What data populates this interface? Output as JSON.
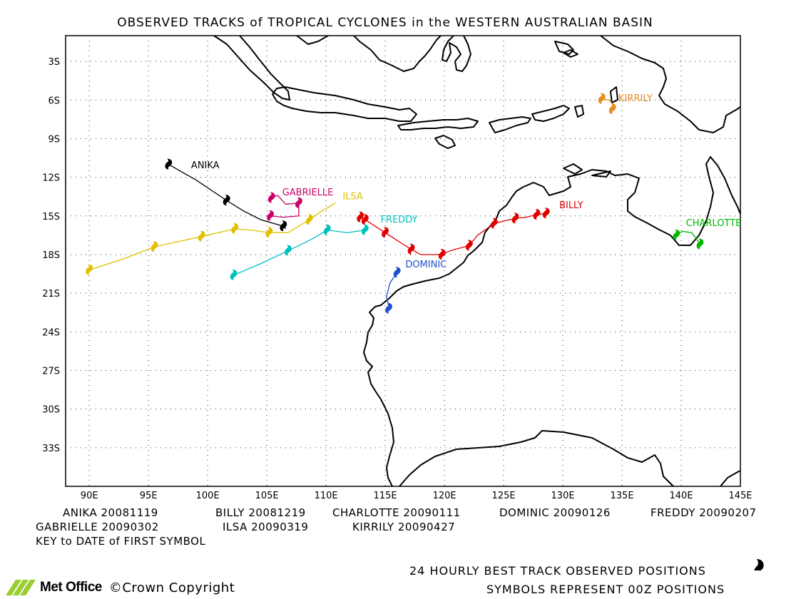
{
  "title": "OBSERVED TRACKS of TROPICAL CYCLONES in the WESTERN AUSTRALIAN BASIN",
  "axes": {
    "lon_labels": [
      "90E",
      "95E",
      "100E",
      "105E",
      "110E",
      "115E",
      "120E",
      "125E",
      "130E",
      "135E",
      "140E",
      "145E"
    ],
    "lat_labels": [
      "3S",
      "6S",
      "9S",
      "12S",
      "15S",
      "18S",
      "21S",
      "24S",
      "27S",
      "30S",
      "33S"
    ]
  },
  "storms": [
    {
      "name": "ANIKA",
      "color": "#000000",
      "label_pos": [
        98.6,
        -11.3
      ],
      "track": [
        [
          96.7,
          -11.0
        ],
        [
          99,
          -12.2
        ],
        [
          101.6,
          -13.8
        ],
        [
          103,
          -14.6
        ],
        [
          104.5,
          -15.3
        ],
        [
          106.4,
          -15.8
        ],
        [
          106.6,
          -16.0
        ]
      ],
      "points": [
        [
          96.7,
          -11.0
        ],
        [
          101.6,
          -13.8
        ],
        [
          106.4,
          -15.8
        ]
      ]
    },
    {
      "name": "BILLY",
      "color": "#e00000",
      "label_pos": [
        129.7,
        -14.4
      ],
      "track": [
        [
          128.6,
          -14.8
        ],
        [
          127.8,
          -14.9
        ],
        [
          126.9,
          -15.1
        ],
        [
          126.0,
          -15.2
        ],
        [
          125,
          -15.4
        ],
        [
          124.2,
          -15.6
        ],
        [
          122.8,
          -16.5
        ],
        [
          122.1,
          -17.3
        ],
        [
          120.5,
          -17.7
        ],
        [
          119.8,
          -18.0
        ],
        [
          118,
          -18.0
        ],
        [
          117.2,
          -17.6
        ],
        [
          116,
          -16.9
        ],
        [
          115,
          -16.3
        ],
        [
          113.3,
          -15.3
        ],
        [
          112.9,
          -15.1
        ]
      ],
      "points": [
        [
          128.6,
          -14.8
        ],
        [
          127.8,
          -14.9
        ],
        [
          126.0,
          -15.2
        ],
        [
          124.2,
          -15.6
        ],
        [
          122.1,
          -17.3
        ],
        [
          119.8,
          -18.0
        ],
        [
          117.2,
          -17.6
        ],
        [
          115.0,
          -16.3
        ],
        [
          113.3,
          -15.3
        ],
        [
          112.9,
          -15.1
        ]
      ]
    },
    {
      "name": "CHARLOTTE",
      "color": "#00b800",
      "label_pos": [
        140.4,
        -15.8
      ],
      "track": [
        [
          139.6,
          -16.5
        ],
        [
          140.1,
          -16.2
        ],
        [
          140.9,
          -16.3
        ],
        [
          141.3,
          -16.8
        ],
        [
          141.6,
          -17.2
        ]
      ],
      "points": [
        [
          139.6,
          -16.5
        ],
        [
          141.6,
          -17.2
        ]
      ]
    },
    {
      "name": "DOMINIC",
      "color": "#2050d0",
      "label_pos": [
        116.7,
        -19.0
      ],
      "track": [
        [
          116.0,
          -19.4
        ],
        [
          115.4,
          -20.2
        ],
        [
          115.1,
          -21.3
        ],
        [
          115.3,
          -22.0
        ],
        [
          115.3,
          -22.3
        ]
      ],
      "points": [
        [
          116.0,
          -19.4
        ],
        [
          115.3,
          -22.2
        ]
      ]
    },
    {
      "name": "FREDDY",
      "color": "#00c0c0",
      "label_pos": [
        114.6,
        -15.5
      ],
      "track": [
        [
          113.3,
          -16.1
        ],
        [
          111.8,
          -16.3
        ],
        [
          110.1,
          -16.1
        ],
        [
          108.6,
          -16.9
        ],
        [
          106.8,
          -17.7
        ],
        [
          104.5,
          -18.7
        ],
        [
          102.2,
          -19.6
        ]
      ],
      "points": [
        [
          113.3,
          -16.1
        ],
        [
          110.1,
          -16.1
        ],
        [
          106.8,
          -17.7
        ],
        [
          102.2,
          -19.6
        ]
      ]
    },
    {
      "name": "GABRIELLE",
      "color": "#cc0066",
      "label_pos": [
        106.3,
        -13.4
      ],
      "track": [
        [
          105.4,
          -13.6
        ],
        [
          105.9,
          -13.4
        ],
        [
          106.6,
          -14.1
        ],
        [
          107.7,
          -14.0
        ],
        [
          107.7,
          -15.0
        ],
        [
          106.4,
          -15.1
        ],
        [
          105.3,
          -15.0
        ]
      ],
      "points": [
        [
          105.4,
          -13.6
        ],
        [
          107.7,
          -14.0
        ],
        [
          105.3,
          -15.0
        ]
      ]
    },
    {
      "name": "ILSA",
      "color": "#e0c000",
      "label_pos": [
        111.4,
        -13.7
      ],
      "track": [
        [
          110.8,
          -14.0
        ],
        [
          109.5,
          -14.7
        ],
        [
          108.6,
          -15.3
        ],
        [
          107.5,
          -15.9
        ],
        [
          106.8,
          -16.3
        ],
        [
          105.2,
          -16.3
        ],
        [
          103.6,
          -16.1
        ],
        [
          102.3,
          -16.0
        ],
        [
          99.5,
          -16.6
        ],
        [
          97.5,
          -17.0
        ],
        [
          95.5,
          -17.4
        ],
        [
          93,
          -18.3
        ],
        [
          90.0,
          -19.2
        ]
      ],
      "points": [
        [
          108.6,
          -15.3
        ],
        [
          105.2,
          -16.3
        ],
        [
          102.3,
          -16.0
        ],
        [
          99.5,
          -16.6
        ],
        [
          95.5,
          -17.4
        ],
        [
          90.0,
          -19.2
        ]
      ]
    },
    {
      "name": "KIRRILY",
      "color": "#e88a20",
      "label_pos": [
        134.7,
        -6.1
      ],
      "track": [
        [
          133.3,
          -5.9
        ],
        [
          133.9,
          -6.0
        ],
        [
          134.2,
          -6.3
        ],
        [
          134.2,
          -6.7
        ]
      ],
      "points": [
        [
          133.3,
          -5.9
        ],
        [
          134.2,
          -6.7
        ]
      ]
    }
  ],
  "key": {
    "row1": [
      "ANIKA 20081119",
      "BILLY 20081219",
      "CHARLOTTE 20090111",
      "DOMINIC 20090126",
      "FREDDY 20090207"
    ],
    "row2": [
      "GABRIELLE 20090302",
      "ILSA 20090319",
      "KIRRILY 20090427"
    ],
    "note": "KEY to DATE of FIRST SYMBOL"
  },
  "footer": {
    "line1": "24 HOURLY BEST TRACK OBSERVED POSITIONS",
    "line2": "SYMBOLS REPRESENT 00Z POSITIONS",
    "brand": "Met Office",
    "copyright": "©Crown Copyright"
  }
}
